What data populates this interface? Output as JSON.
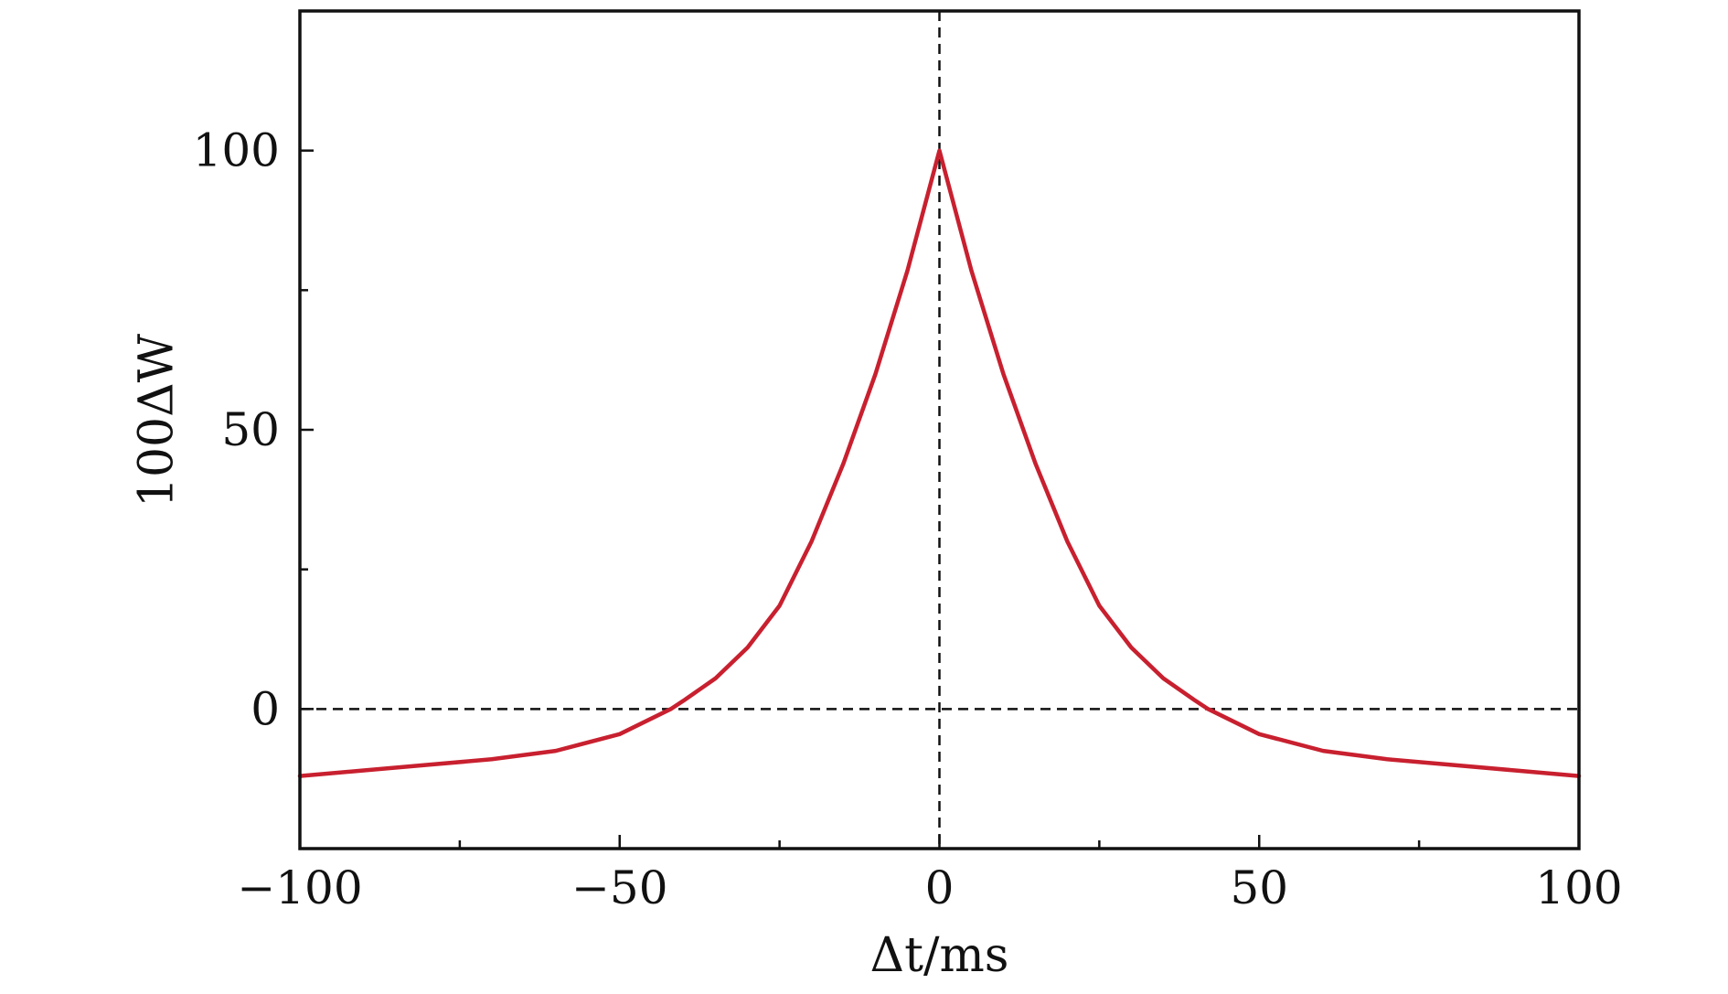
{
  "chart_data": {
    "type": "line",
    "title": "",
    "xlabel": "Δt/ms",
    "ylabel": "100ΔW",
    "xlim": [
      -100,
      100
    ],
    "ylim": [
      -25,
      125
    ],
    "x_ticks": [
      -100,
      -50,
      0,
      50,
      100
    ],
    "x_tick_labels": [
      "−100",
      "−50",
      "0",
      "50",
      "100"
    ],
    "x_minor_ticks": [
      -75,
      -25,
      25,
      75
    ],
    "y_ticks": [
      0,
      50,
      100
    ],
    "y_tick_labels": [
      "0",
      "50",
      "100"
    ],
    "y_minor_ticks": [
      25,
      75
    ],
    "grid": false,
    "reference_lines": [
      {
        "orientation": "horizontal",
        "value": 0,
        "style": "dashed"
      },
      {
        "orientation": "vertical",
        "value": 0,
        "style": "dashed"
      }
    ],
    "series": [
      {
        "color": "#c8202f",
        "x": [
          -100,
          -90,
          -80,
          -70,
          -60,
          -50,
          -42,
          -40,
          -35,
          -30,
          -25,
          -20,
          -15,
          -10,
          -5,
          0,
          5,
          10,
          15,
          20,
          25,
          30,
          35,
          40,
          42,
          50,
          60,
          70,
          80,
          90,
          100
        ],
        "y": [
          -12,
          -11,
          -10,
          -9,
          -7.5,
          -4.5,
          0,
          1.5,
          5.5,
          11,
          18.5,
          30,
          44,
          60,
          78.5,
          100,
          78.5,
          60,
          44,
          30,
          18.5,
          11,
          5.5,
          1.5,
          0,
          -4.5,
          -7.5,
          -9,
          -10,
          -11,
          -12
        ]
      }
    ]
  }
}
